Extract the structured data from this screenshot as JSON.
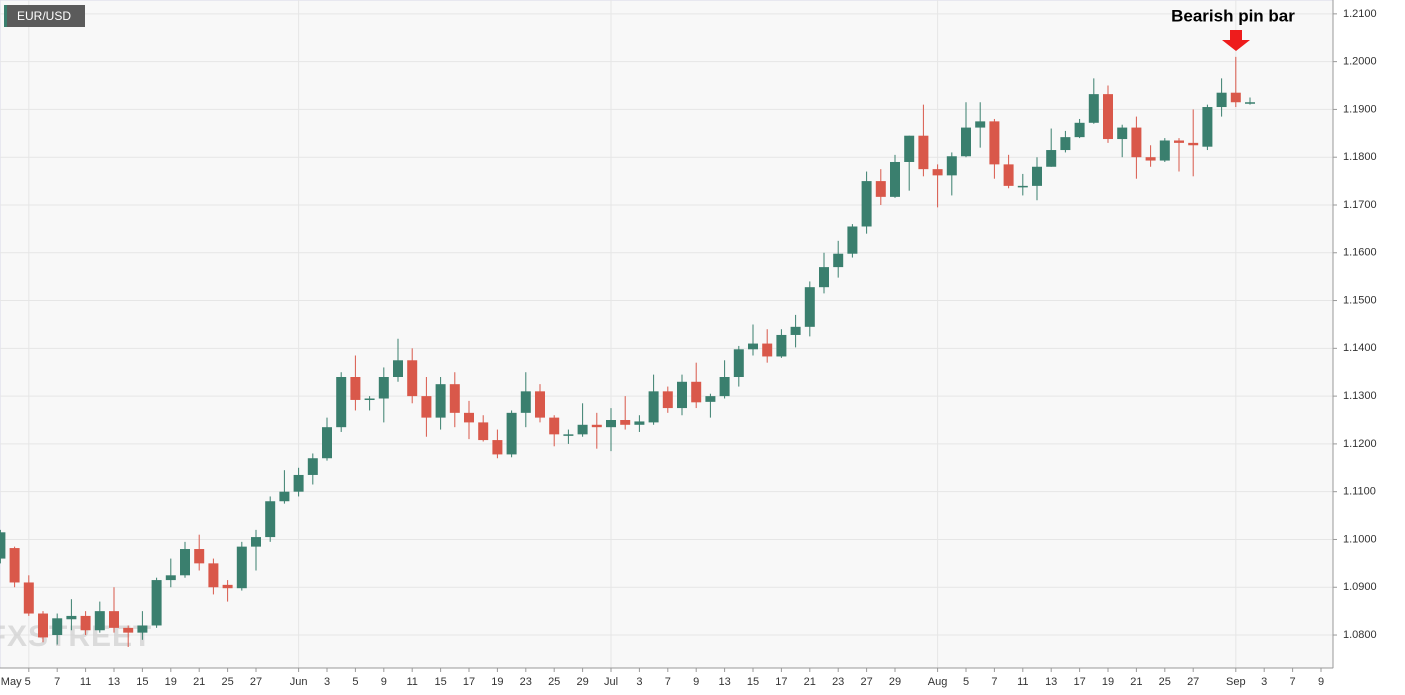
{
  "chart_data": {
    "type": "candlestick",
    "symbol": "EUR/USD",
    "annotation": "Bearish pin bar",
    "watermark": "FXSTREET",
    "up_color": "#3a7f6e",
    "down_color": "#d9584a",
    "grid": true,
    "categories": [
      null,
      null,
      "May 5",
      null,
      "7",
      null,
      "11",
      null,
      "13",
      null,
      "15",
      null,
      "19",
      null,
      "21",
      null,
      "25",
      null,
      "27",
      null,
      null,
      "Jun",
      null,
      "3",
      null,
      "5",
      null,
      "9",
      null,
      "11",
      null,
      "15",
      null,
      "17",
      null,
      "19",
      null,
      "23",
      null,
      "25",
      null,
      "29",
      null,
      "Jul",
      null,
      "3",
      null,
      "7",
      null,
      "9",
      null,
      "13",
      null,
      "15",
      null,
      "17",
      null,
      "21",
      null,
      "23",
      null,
      "27",
      null,
      "29",
      null,
      null,
      "Aug",
      null,
      "5",
      null,
      "7",
      null,
      "11",
      null,
      "13",
      null,
      "17",
      null,
      "19",
      null,
      "21",
      null,
      "25",
      null,
      "27",
      null,
      null,
      "Sep",
      null,
      "3",
      null,
      "7",
      null,
      "9"
    ],
    "open": [
      1.096,
      1.0982,
      1.091,
      1.0845,
      1.08,
      1.0833,
      1.084,
      1.081,
      1.085,
      1.0815,
      1.0805,
      1.082,
      1.0915,
      1.0925,
      1.098,
      1.095,
      1.0905,
      1.0898,
      1.0985,
      1.1005,
      1.108,
      1.11,
      1.1135,
      1.117,
      1.1235,
      1.134,
      1.1292,
      1.1295,
      1.134,
      1.1375,
      1.13,
      1.1255,
      1.1325,
      1.1265,
      1.1245,
      1.1208,
      1.1178,
      1.1265,
      1.131,
      1.1255,
      1.1218,
      1.122,
      1.124,
      1.1235,
      1.125,
      1.124,
      1.1245,
      1.131,
      1.1275,
      1.133,
      1.1288,
      1.13,
      1.134,
      1.1398,
      1.141,
      1.1383,
      1.1428,
      1.1445,
      1.1528,
      1.157,
      1.1598,
      1.1655,
      1.175,
      1.1717,
      1.179,
      1.1845,
      1.1775,
      1.1762,
      1.1802,
      1.1862,
      1.1875,
      1.1785,
      1.1738,
      1.174,
      1.178,
      1.1815,
      1.1842,
      1.1872,
      1.1932,
      1.1838,
      1.1862,
      1.18,
      1.1793,
      1.1835,
      1.183,
      1.1822,
      1.1905,
      1.1935,
      1.1913,
      null,
      null,
      null,
      null,
      null
    ],
    "high": [
      1.102,
      1.0985,
      1.0925,
      1.085,
      1.0845,
      1.0875,
      1.085,
      1.087,
      1.09,
      1.082,
      1.085,
      1.092,
      1.096,
      1.0995,
      1.101,
      1.096,
      1.0915,
      1.0995,
      1.102,
      1.109,
      1.1145,
      1.115,
      1.118,
      1.1255,
      1.135,
      1.1385,
      1.13,
      1.136,
      1.142,
      1.14,
      1.134,
      1.134,
      1.135,
      1.129,
      1.126,
      1.123,
      1.127,
      1.135,
      1.1325,
      1.126,
      1.123,
      1.1285,
      1.1265,
      1.1275,
      1.13,
      1.126,
      1.1345,
      1.132,
      1.1345,
      1.137,
      1.1305,
      1.1375,
      1.1405,
      1.145,
      1.144,
      1.144,
      1.147,
      1.154,
      1.16,
      1.1625,
      1.166,
      1.177,
      1.1775,
      1.1805,
      1.1845,
      1.191,
      1.1785,
      1.181,
      1.1915,
      1.1915,
      1.188,
      1.1805,
      1.1765,
      1.18,
      1.186,
      1.1855,
      1.188,
      1.1965,
      1.195,
      1.1868,
      1.1885,
      1.1825,
      1.184,
      1.184,
      1.19,
      1.191,
      1.1965,
      1.201,
      1.1925,
      null,
      null,
      null,
      null,
      null
    ],
    "low": [
      1.095,
      1.09,
      1.084,
      1.0785,
      1.078,
      1.081,
      1.08,
      1.0805,
      1.0805,
      1.0775,
      1.079,
      1.0815,
      1.09,
      1.092,
      1.0935,
      1.0885,
      1.087,
      1.0893,
      1.0935,
      1.0995,
      1.1075,
      1.109,
      1.1115,
      1.1165,
      1.1225,
      1.127,
      1.127,
      1.1245,
      1.133,
      1.1285,
      1.1215,
      1.123,
      1.1235,
      1.121,
      1.1205,
      1.117,
      1.1172,
      1.1235,
      1.1245,
      1.1195,
      1.12,
      1.1215,
      1.119,
      1.1185,
      1.123,
      1.1225,
      1.124,
      1.1265,
      1.126,
      1.1275,
      1.1255,
      1.1295,
      1.132,
      1.1385,
      1.137,
      1.138,
      1.1402,
      1.1425,
      1.1515,
      1.1548,
      1.159,
      1.164,
      1.17,
      1.1715,
      1.173,
      1.176,
      1.1695,
      1.172,
      1.18,
      1.182,
      1.1755,
      1.1735,
      1.172,
      1.171,
      1.178,
      1.181,
      1.184,
      1.187,
      1.183,
      1.18,
      1.1755,
      1.178,
      1.179,
      1.177,
      1.176,
      1.1815,
      1.1885,
      1.1905,
      1.191,
      null,
      null,
      null,
      null,
      null
    ],
    "close": [
      1.1015,
      1.091,
      1.0845,
      1.0795,
      1.0835,
      1.084,
      1.081,
      1.085,
      1.0815,
      1.0805,
      1.082,
      1.0915,
      1.0925,
      1.098,
      1.095,
      1.09,
      1.0898,
      1.0985,
      1.1005,
      1.108,
      1.11,
      1.1135,
      1.117,
      1.1235,
      1.134,
      1.1292,
      1.1295,
      1.134,
      1.1375,
      1.13,
      1.1255,
      1.1325,
      1.1265,
      1.1245,
      1.1208,
      1.1178,
      1.1265,
      1.131,
      1.1255,
      1.122,
      1.122,
      1.124,
      1.1235,
      1.125,
      1.124,
      1.1247,
      1.131,
      1.1275,
      1.133,
      1.1287,
      1.13,
      1.134,
      1.1398,
      1.141,
      1.1383,
      1.1428,
      1.1445,
      1.1528,
      1.157,
      1.1598,
      1.1655,
      1.175,
      1.1717,
      1.179,
      1.1845,
      1.1775,
      1.1762,
      1.1802,
      1.1862,
      1.1875,
      1.1785,
      1.174,
      1.174,
      1.178,
      1.1815,
      1.1842,
      1.1872,
      1.1932,
      1.1838,
      1.1862,
      1.18,
      1.1793,
      1.1835,
      1.183,
      1.1825,
      1.1905,
      1.1935,
      1.1915,
      1.1915,
      null,
      null,
      null,
      null,
      null
    ],
    "ylim": [
      1.0731,
      1.2129
    ],
    "yticks": [
      {
        "value": 1.08,
        "label": "1.0800"
      },
      {
        "value": 1.09,
        "label": "1.0900"
      },
      {
        "value": 1.1,
        "label": "1.1000"
      },
      {
        "value": 1.11,
        "label": "1.1100"
      },
      {
        "value": 1.12,
        "label": "1.1200"
      },
      {
        "value": 1.13,
        "label": "1.1300"
      },
      {
        "value": 1.14,
        "label": "1.1400"
      },
      {
        "value": 1.15,
        "label": "1.1500"
      },
      {
        "value": 1.16,
        "label": "1.1600"
      },
      {
        "value": 1.17,
        "label": "1.1700"
      },
      {
        "value": 1.18,
        "label": "1.1800"
      },
      {
        "value": 1.19,
        "label": "1.1900"
      },
      {
        "value": 1.2,
        "label": "1.2000"
      },
      {
        "value": 1.21,
        "label": "1.2100"
      }
    ]
  }
}
